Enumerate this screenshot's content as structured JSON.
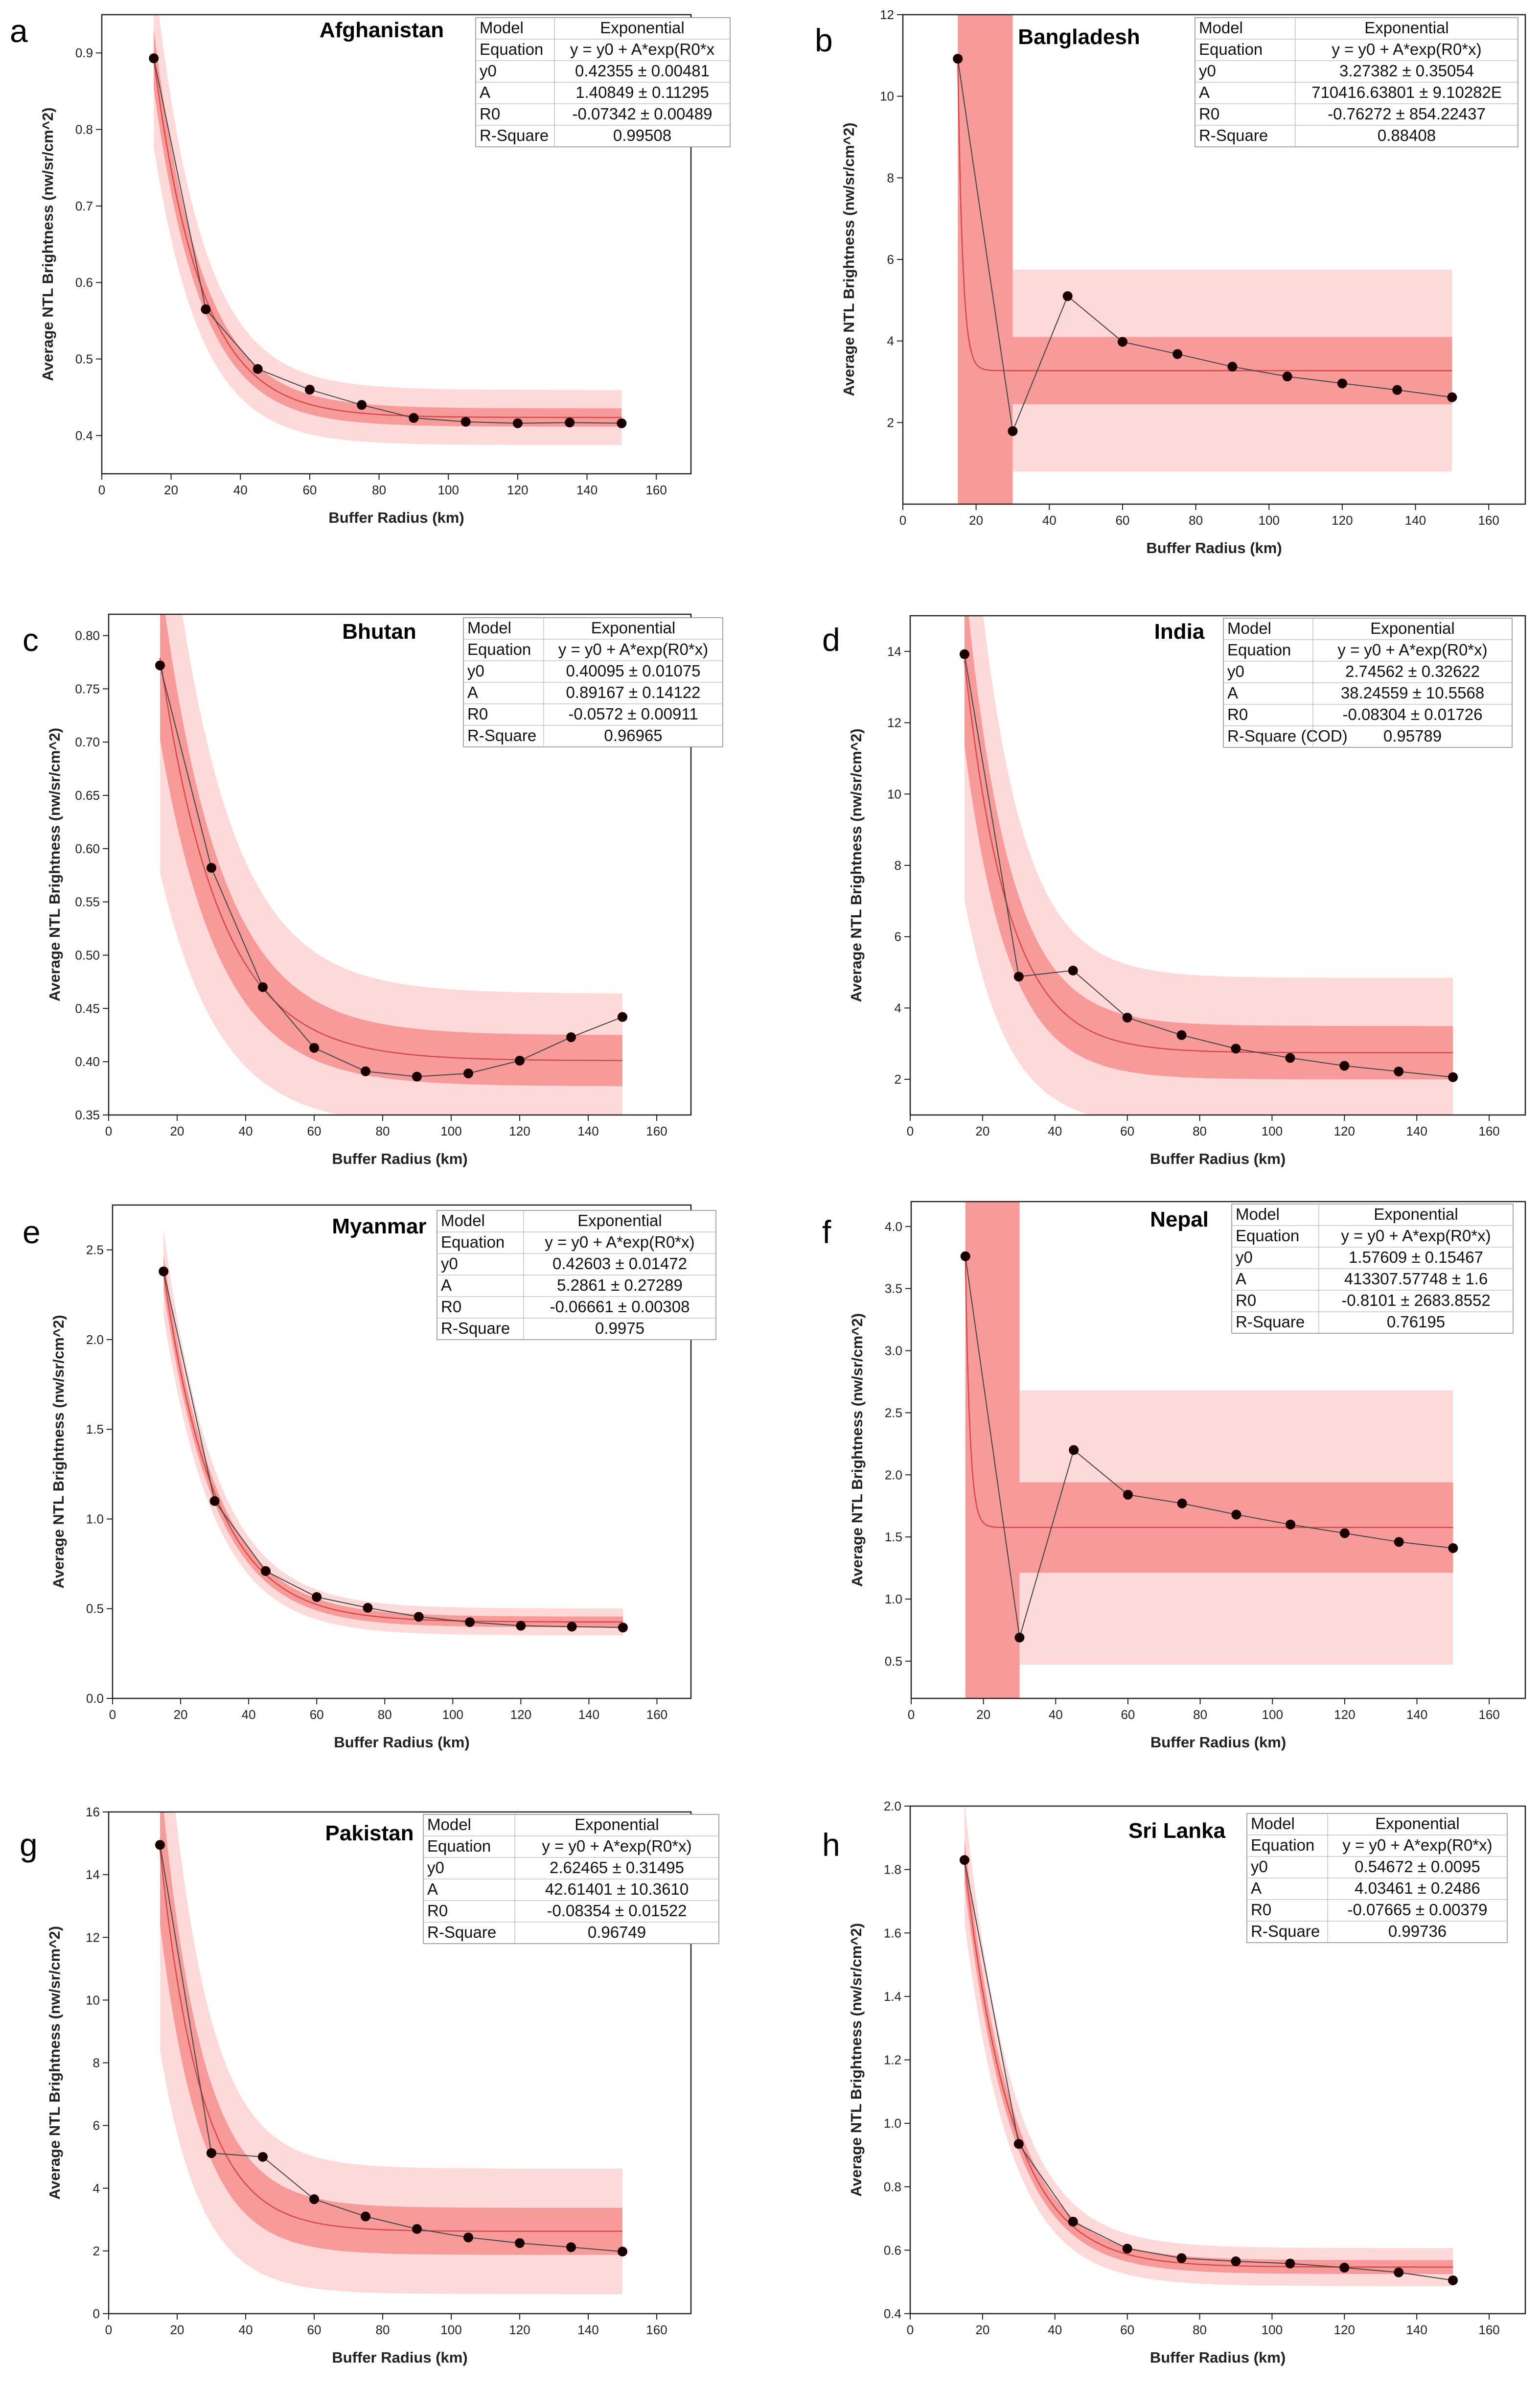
{
  "figure": {
    "fit_model": "Exponential",
    "chart_count": 8
  },
  "chart_data": [
    {
      "type": "scatter",
      "panel": "a",
      "title": "Afghanistan",
      "xlabel": "Buffer Radius (km)",
      "ylabel": "Average NTL Brightness (nw/sr/cm^2)",
      "xlim": [
        0,
        170
      ],
      "ylim": [
        0.35,
        0.95
      ],
      "xticks": [
        0,
        20,
        40,
        60,
        80,
        100,
        120,
        140,
        160
      ],
      "yticks": [
        0.4,
        0.5,
        0.6,
        0.7,
        0.8,
        0.9
      ],
      "tick_decimals": 1,
      "x": [
        15,
        30,
        45,
        60,
        75,
        90,
        105,
        120,
        135,
        150
      ],
      "y": [
        0.893,
        0.565,
        0.487,
        0.46,
        0.44,
        0.423,
        0.418,
        0.416,
        0.417,
        0.416
      ],
      "fit": {
        "y0": 0.42355,
        "A": 1.40849,
        "R0": -0.07342
      },
      "bands": {
        "confidence": 0.012,
        "prediction": 0.036,
        "spike": false
      },
      "stats_table": [
        [
          "Model",
          "Exponential"
        ],
        [
          "Equation",
          "y = y0 + A*exp(R0*x"
        ],
        [
          "y0",
          "0.42355 ± 0.00481"
        ],
        [
          "A",
          "1.40849 ± 0.11295"
        ],
        [
          "R0",
          "-0.07342 ± 0.00489"
        ],
        [
          "R-Square",
          "0.99508"
        ]
      ]
    },
    {
      "type": "scatter",
      "panel": "b",
      "title": "Bangladesh",
      "xlabel": "Buffer Radius (km)",
      "ylabel": "Average NTL Brightness (nw/sr/cm^2)",
      "xlim": [
        0,
        170
      ],
      "ylim": [
        0,
        12
      ],
      "xticks": [
        0,
        20,
        40,
        60,
        80,
        100,
        120,
        140,
        160
      ],
      "yticks": [
        2,
        4,
        6,
        8,
        10,
        12
      ],
      "tick_decimals": 0,
      "x": [
        15,
        30,
        45,
        60,
        75,
        90,
        105,
        120,
        135,
        150
      ],
      "y": [
        10.92,
        1.79,
        5.1,
        3.98,
        3.68,
        3.37,
        3.13,
        2.96,
        2.8,
        2.62
      ],
      "fit": {
        "y0": 3.27382,
        "A": 710416.63801,
        "R0": -0.76272
      },
      "bands": {
        "confidence": 0.85,
        "prediction": 2.45,
        "spike": true,
        "ci_top": 4.1,
        "pi_top": 5.75
      },
      "stats_table": [
        [
          "Model",
          "Exponential"
        ],
        [
          "Equation",
          "y = y0 + A*exp(R0*x)"
        ],
        [
          "y0",
          "3.27382 ± 0.35054"
        ],
        [
          "A",
          "710416.63801 ± 9.10282E"
        ],
        [
          "R0",
          "-0.76272 ± 854.22437"
        ],
        [
          "R-Square",
          "0.88408"
        ]
      ]
    },
    {
      "type": "scatter",
      "panel": "c",
      "title": "Bhutan",
      "xlabel": "Buffer Radius (km)",
      "ylabel": "Average NTL Brightness (nw/sr/cm^2)",
      "xlim": [
        0,
        170
      ],
      "ylim": [
        0.35,
        0.82
      ],
      "xticks": [
        0,
        20,
        40,
        60,
        80,
        100,
        120,
        140,
        160
      ],
      "yticks": [
        0.35,
        0.4,
        0.45,
        0.5,
        0.55,
        0.6,
        0.65,
        0.7,
        0.75,
        0.8
      ],
      "tick_decimals": 2,
      "x": [
        15,
        30,
        45,
        60,
        75,
        90,
        105,
        120,
        135,
        150
      ],
      "y": [
        0.772,
        0.582,
        0.47,
        0.413,
        0.391,
        0.386,
        0.389,
        0.401,
        0.423,
        0.442
      ],
      "fit": {
        "y0": 0.40095,
        "A": 0.89167,
        "R0": -0.0572
      },
      "bands": {
        "confidence": 0.024,
        "prediction": 0.063,
        "spike": false
      },
      "stats_table": [
        [
          "Model",
          "Exponential"
        ],
        [
          "Equation",
          "y = y0 + A*exp(R0*x)"
        ],
        [
          "y0",
          "0.40095 ± 0.01075"
        ],
        [
          "A",
          "0.89167 ± 0.14122"
        ],
        [
          "R0",
          "-0.0572 ± 0.00911"
        ],
        [
          "R-Square",
          "0.96965"
        ]
      ]
    },
    {
      "type": "scatter",
      "panel": "d",
      "title": "India",
      "xlabel": "Buffer Radius (km)",
      "ylabel": "Average NTL Brightness (nw/sr/cm^2)",
      "xlim": [
        0,
        170
      ],
      "ylim": [
        1,
        15
      ],
      "xticks": [
        0,
        20,
        40,
        60,
        80,
        100,
        120,
        140,
        160
      ],
      "yticks": [
        2,
        4,
        6,
        8,
        10,
        12,
        14
      ],
      "tick_decimals": 0,
      "x": [
        15,
        30,
        45,
        60,
        75,
        90,
        105,
        120,
        135,
        150
      ],
      "y": [
        13.92,
        4.88,
        5.05,
        3.73,
        3.24,
        2.86,
        2.6,
        2.38,
        2.22,
        2.06
      ],
      "fit": {
        "y0": 2.74562,
        "A": 38.24559,
        "R0": -0.08304
      },
      "bands": {
        "confidence": 0.75,
        "prediction": 2.1,
        "spike": false
      },
      "stats_table": [
        [
          "Model",
          "Exponential"
        ],
        [
          "Equation",
          "y = y0 + A*exp(R0*x)"
        ],
        [
          "y0",
          "2.74562 ± 0.32622"
        ],
        [
          "A",
          "38.24559 ± 10.5568"
        ],
        [
          "R0",
          "-0.08304 ± 0.01726"
        ],
        [
          "R-Square (COD)",
          "0.95789"
        ]
      ]
    },
    {
      "type": "scatter",
      "panel": "e",
      "title": "Myanmar",
      "xlabel": "Buffer Radius (km)",
      "ylabel": "Average NTL Brightness (nw/sr/cm^2)",
      "xlim": [
        0,
        170
      ],
      "ylim": [
        0,
        2.75
      ],
      "xticks": [
        0,
        20,
        40,
        60,
        80,
        100,
        120,
        140,
        160
      ],
      "yticks": [
        0,
        0.5,
        1,
        1.5,
        2,
        2.5
      ],
      "tick_decimals": 1,
      "x": [
        15,
        30,
        45,
        60,
        75,
        90,
        105,
        120,
        135,
        150
      ],
      "y": [
        2.38,
        1.1,
        0.71,
        0.565,
        0.505,
        0.455,
        0.425,
        0.405,
        0.4,
        0.395
      ],
      "fit": {
        "y0": 0.42603,
        "A": 5.2861,
        "R0": -0.06661
      },
      "bands": {
        "confidence": 0.03,
        "prediction": 0.075,
        "spike": false
      },
      "stats_table": [
        [
          "Model",
          "Exponential"
        ],
        [
          "Equation",
          "y = y0 + A*exp(R0*x)"
        ],
        [
          "y0",
          "0.42603 ± 0.01472"
        ],
        [
          "A",
          "5.2861 ± 0.27289"
        ],
        [
          "R0",
          "-0.06661 ± 0.00308"
        ],
        [
          "R-Square",
          "0.9975"
        ]
      ]
    },
    {
      "type": "scatter",
      "panel": "f",
      "title": "Nepal",
      "xlabel": "Buffer Radius (km)",
      "ylabel": "Average NTL Brightness (nw/sr/cm^2)",
      "xlim": [
        0,
        170
      ],
      "ylim": [
        0.2,
        4.2
      ],
      "xticks": [
        0,
        20,
        40,
        60,
        80,
        100,
        120,
        140,
        160
      ],
      "yticks": [
        0.5,
        1,
        1.5,
        2,
        2.5,
        3,
        3.5,
        4
      ],
      "tick_decimals": 1,
      "x": [
        15,
        30,
        45,
        60,
        75,
        90,
        105,
        120,
        135,
        150
      ],
      "y": [
        3.76,
        0.69,
        2.2,
        1.84,
        1.77,
        1.68,
        1.6,
        1.53,
        1.46,
        1.41
      ],
      "fit": {
        "y0": 1.57609,
        "A": 413307.57748,
        "R0": -0.8101
      },
      "bands": {
        "confidence": 0.36,
        "prediction": 1.08,
        "spike": true,
        "ci_top": 1.94,
        "pi_top": 2.68
      },
      "stats_table": [
        [
          "Model",
          "Exponential"
        ],
        [
          "Equation",
          "y = y0 + A*exp(R0*x)"
        ],
        [
          "y0",
          "1.57609 ± 0.15467"
        ],
        [
          "A",
          "413307.57748 ± 1.6"
        ],
        [
          "R0",
          "-0.8101 ± 2683.8552"
        ],
        [
          "R-Square",
          "0.76195"
        ]
      ]
    },
    {
      "type": "scatter",
      "panel": "g",
      "title": "Pakistan",
      "xlabel": "Buffer Radius (km)",
      "ylabel": "Average NTL Brightness (nw/sr/cm^2)",
      "xlim": [
        0,
        170
      ],
      "ylim": [
        0,
        16
      ],
      "xticks": [
        0,
        20,
        40,
        60,
        80,
        100,
        120,
        140,
        160
      ],
      "yticks": [
        0,
        2,
        4,
        6,
        8,
        10,
        12,
        14,
        16
      ],
      "tick_decimals": 0,
      "x": [
        15,
        30,
        45,
        60,
        75,
        90,
        105,
        120,
        135,
        150
      ],
      "y": [
        14.95,
        5.12,
        5.0,
        3.65,
        3.1,
        2.7,
        2.43,
        2.25,
        2.12,
        1.98
      ],
      "fit": {
        "y0": 2.62465,
        "A": 42.61401,
        "R0": -0.08354
      },
      "bands": {
        "confidence": 0.75,
        "prediction": 2.0,
        "spike": false
      },
      "stats_table": [
        [
          "Model",
          "Exponential"
        ],
        [
          "Equation",
          "y = y0 + A*exp(R0*x)"
        ],
        [
          "y0",
          "2.62465 ± 0.31495"
        ],
        [
          "A",
          "42.61401 ± 10.3610"
        ],
        [
          "R0",
          "-0.08354 ± 0.01522"
        ],
        [
          "R-Square",
          "0.96749"
        ]
      ]
    },
    {
      "type": "scatter",
      "panel": "h",
      "title": "Sri Lanka",
      "xlabel": "Buffer Radius (km)",
      "ylabel": "Average NTL Brightness (nw/sr/cm^2)",
      "xlim": [
        0,
        170
      ],
      "ylim": [
        0.4,
        2.0
      ],
      "xticks": [
        0,
        20,
        40,
        60,
        80,
        100,
        120,
        140,
        160
      ],
      "yticks": [
        0.4,
        0.6,
        0.8,
        1.0,
        1.2,
        1.4,
        1.6,
        1.8,
        2.0
      ],
      "tick_decimals": 1,
      "x": [
        15,
        30,
        45,
        60,
        75,
        90,
        105,
        120,
        135,
        150
      ],
      "y": [
        1.83,
        0.935,
        0.69,
        0.605,
        0.575,
        0.565,
        0.558,
        0.545,
        0.53,
        0.505
      ],
      "fit": {
        "y0": 0.54672,
        "A": 4.03461,
        "R0": -0.07665
      },
      "bands": {
        "confidence": 0.022,
        "prediction": 0.06,
        "spike": false
      },
      "stats_table": [
        [
          "Model",
          "Exponential"
        ],
        [
          "Equation",
          "y = y0 + A*exp(R0*x)"
        ],
        [
          "y0",
          "0.54672 ± 0.0095"
        ],
        [
          "A",
          "4.03461 ± 0.2486"
        ],
        [
          "R0",
          "-0.07665 ± 0.00379"
        ],
        [
          "R-Square",
          "0.99736"
        ]
      ]
    }
  ],
  "colors": {
    "prediction_band": "#fdd9d9",
    "confidence_band": "#f79a9a",
    "fit_line": "#d84848",
    "data_line": "#444444",
    "marker": "#1a0000",
    "axis": "#222222"
  }
}
